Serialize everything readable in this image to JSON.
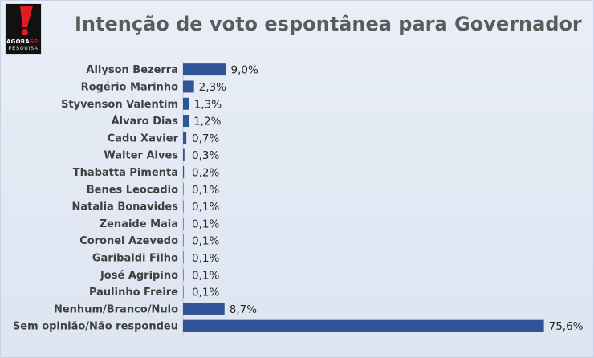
{
  "logo": {
    "word1": "AGORA",
    "word2": "SEI",
    "tagline": "PESQUISA",
    "icon": "exclamation-mark-icon",
    "colors": {
      "mark": "#e31b23",
      "background": "#111111"
    }
  },
  "chart_data": {
    "type": "bar",
    "orientation": "horizontal",
    "title": "Intenção de voto espontânea para Governador",
    "categories": [
      "Allyson Bezerra",
      "Rogério Marinho",
      "Styvenson Valentim",
      "Álvaro Dias",
      "Cadu Xavier",
      "Walter Alves",
      "Thabatta Pimenta",
      "Benes Leocadio",
      "Natalia Bonavides",
      "Zenaide Maia",
      "Coronel Azevedo",
      "Garibaldi Filho",
      "José Agripino",
      "Paulinho Freire",
      "Nenhum/Branco/Nulo",
      "Sem opinião/Não respondeu"
    ],
    "values": [
      9.0,
      2.3,
      1.3,
      1.2,
      0.7,
      0.3,
      0.2,
      0.1,
      0.1,
      0.1,
      0.1,
      0.1,
      0.1,
      0.1,
      8.7,
      75.6
    ],
    "value_labels": [
      "9,0%",
      "2,3%",
      "1,3%",
      "1,2%",
      "0,7%",
      "0,3%",
      "0,2%",
      "0,1%",
      "0,1%",
      "0,1%",
      "0,1%",
      "0,1%",
      "0,1%",
      "0,1%",
      "8,7%",
      "75,6%"
    ],
    "xlim": [
      0,
      76
    ],
    "grid": false,
    "legend": "none",
    "bar_color": "#2f5597"
  }
}
